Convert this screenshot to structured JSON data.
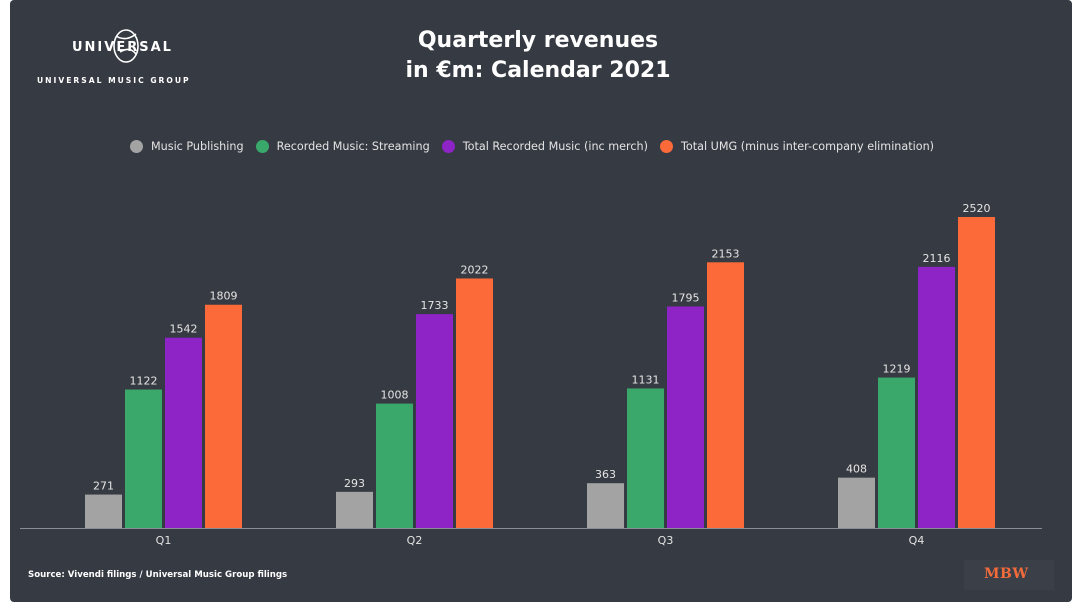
{
  "branding": {
    "logo_word": "UNIVERSAL",
    "logo_sub": "UNIVERSAL MUSIC GROUP",
    "globe_icon": "globe-icon",
    "mbw": "MBW"
  },
  "footer": {
    "source": "Source: Vivendi filings / Universal Music Group filings"
  },
  "colors": {
    "background": "#363a42",
    "axis": "#8a8e96",
    "label": "#e4e4e4"
  },
  "chart_data": {
    "type": "bar",
    "title": "Quarterly revenues",
    "subtitle": "in €m: Calendar 2021",
    "xlabel": "",
    "ylabel": "",
    "ylim": [
      0,
      2520
    ],
    "grid": false,
    "legend_position": "top",
    "categories": [
      "Q1",
      "Q2",
      "Q3",
      "Q4"
    ],
    "series": [
      {
        "name": "Music Publishing",
        "color": "#a3a3a3",
        "values": [
          271,
          293,
          363,
          408
        ]
      },
      {
        "name": "Recorded Music: Streaming",
        "color": "#3aa86b",
        "values": [
          1122,
          1008,
          1131,
          1219
        ]
      },
      {
        "name": "Total Recorded Music (inc merch)",
        "color": "#8e24c6",
        "values": [
          1542,
          1733,
          1795,
          2116
        ]
      },
      {
        "name": "Total UMG (minus inter-company elimination)",
        "color": "#fb6a38",
        "values": [
          1809,
          2022,
          2153,
          2520
        ]
      }
    ]
  }
}
